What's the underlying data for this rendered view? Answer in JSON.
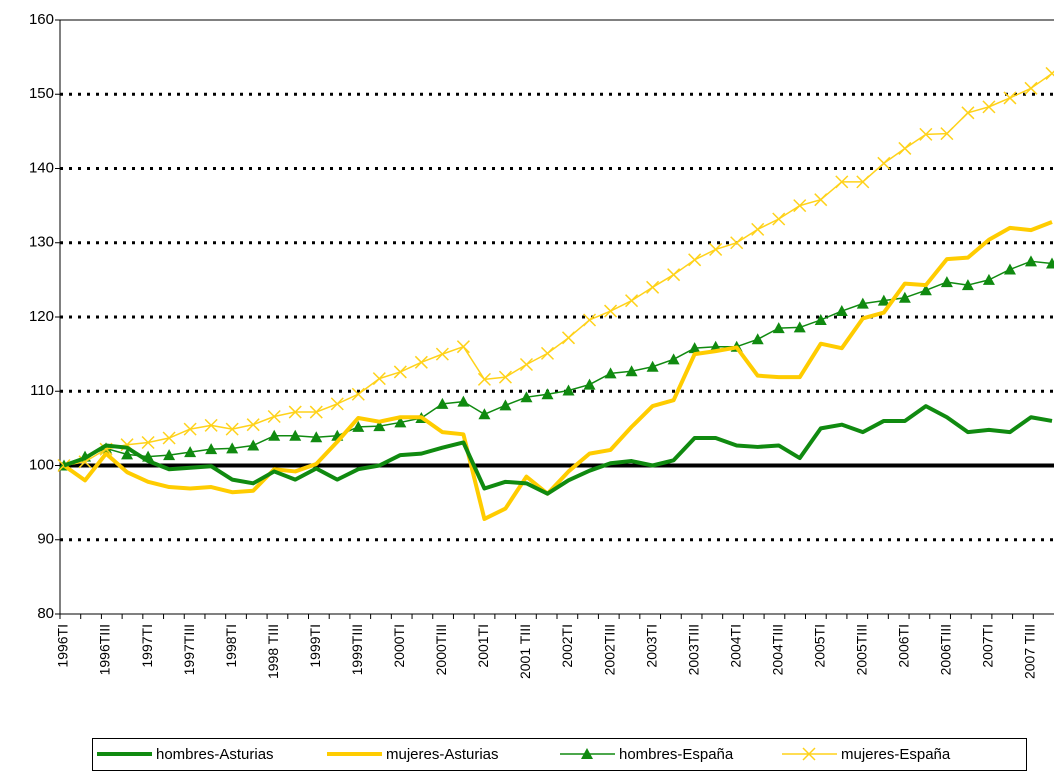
{
  "chart_data": {
    "type": "line",
    "categories": [
      "1996TI",
      null,
      "1996TIII",
      null,
      "1997TI",
      null,
      "1997TIII",
      null,
      "1998TI",
      null,
      "1998 TIII",
      null,
      "1999TI",
      null,
      "1999TIII",
      null,
      "2000TI",
      null,
      "2000TIII",
      null,
      "2001TI",
      null,
      "2001 TIII",
      null,
      "2002TI",
      null,
      "2002TIII",
      null,
      "2003TI",
      null,
      "2003TIII",
      null,
      "2004TI",
      null,
      "2004TIII",
      null,
      "2005TI",
      null,
      "2005TIII",
      null,
      "2006TI",
      null,
      "2006TIII",
      null,
      "2007TI",
      null,
      "2007 TIII",
      null
    ],
    "series": [
      {
        "name": "hombres-Asturias",
        "color": "#108a10",
        "line_width": 4,
        "marker": "none",
        "values": [
          100,
          101,
          102.7,
          102.4,
          100.6,
          99.5,
          99.7,
          99.9,
          98.1,
          97.6,
          99.2,
          98.1,
          99.6,
          98.1,
          99.5,
          100,
          101.4,
          101.6,
          102.4,
          103.1,
          96.9,
          97.8,
          97.6,
          96.2,
          98,
          99.3,
          100.3,
          100.6,
          100,
          100.7,
          103.7,
          103.7,
          102.7,
          102.5,
          102.7,
          101,
          105,
          105.5,
          104.5,
          106,
          106,
          108,
          106.5,
          104.5,
          104.8,
          104.5,
          106.5,
          106
        ]
      },
      {
        "name": "mujeres-Asturias",
        "color": "#ffcc00",
        "line_width": 4,
        "marker": "none",
        "values": [
          100,
          98,
          101.6,
          99.1,
          97.8,
          97.1,
          96.9,
          97.1,
          96.4,
          96.6,
          99.5,
          99.2,
          100.2,
          103.2,
          106.4,
          105.9,
          106.5,
          106.5,
          104.5,
          104.2,
          92.8,
          94.2,
          98.5,
          96.2,
          99.2,
          101.6,
          102.1,
          105.2,
          108,
          108.8,
          115,
          115.4,
          115.9,
          112.1,
          111.9,
          111.9,
          116.4,
          115.8,
          119.8,
          120.6,
          124.5,
          124.3,
          127.8,
          128,
          130.4,
          132,
          131.7,
          132.8
        ]
      },
      {
        "name": "hombres-España",
        "color": "#108a10",
        "line_width": 1.5,
        "marker": "triangle",
        "values": [
          100,
          101.2,
          102.3,
          101.5,
          101.2,
          101.4,
          101.8,
          102.2,
          102.3,
          102.7,
          104,
          104,
          103.8,
          104,
          105.2,
          105.3,
          105.8,
          106.4,
          108.3,
          108.6,
          106.9,
          108.1,
          109.2,
          109.6,
          110.1,
          110.9,
          112.4,
          112.7,
          113.3,
          114.3,
          115.8,
          116,
          116,
          117,
          118.5,
          118.6,
          119.6,
          120.8,
          121.8,
          122.2,
          122.6,
          123.6,
          124.7,
          124.3,
          125,
          126.4,
          127.5,
          127.2
        ]
      },
      {
        "name": "mujeres-España",
        "color": "#ffd21a",
        "line_width": 1.5,
        "marker": "x",
        "values": [
          100,
          100.5,
          102.2,
          102.8,
          103.1,
          103.7,
          104.9,
          105.4,
          104.9,
          105.5,
          106.6,
          107.2,
          107.2,
          108.3,
          109.6,
          111.7,
          112.6,
          113.9,
          115,
          116,
          111.6,
          111.9,
          113.6,
          115.1,
          117.2,
          119.6,
          120.8,
          122.2,
          124,
          125.7,
          127.7,
          129.1,
          130,
          131.8,
          133.2,
          135,
          135.8,
          138.2,
          138.2,
          140.7,
          142.7,
          144.6,
          144.7,
          147.5,
          148.3,
          149.5,
          150.8,
          152.8
        ]
      }
    ],
    "ylim": [
      80,
      160
    ],
    "yticks": [
      80,
      90,
      100,
      110,
      120,
      130,
      140,
      150,
      160
    ],
    "grid": true,
    "baseline": 100,
    "legend": "bottom"
  }
}
